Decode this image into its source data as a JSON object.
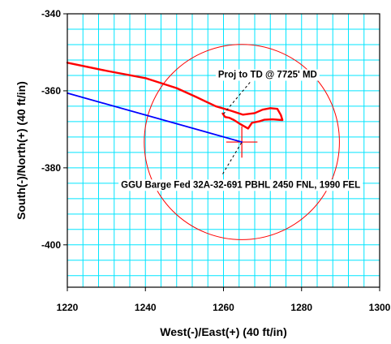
{
  "chart_data": {
    "type": "line",
    "title": "",
    "xlabel": "West(-)/East(+) (40 ft/in)",
    "ylabel": "South(-)/North(+) (40 ft/in)",
    "xlim": [
      1220,
      1300
    ],
    "ylim": [
      -411,
      -340
    ],
    "x_ticks": [
      1220,
      1240,
      1260,
      1280,
      1300
    ],
    "y_ticks": [
      -340,
      -360,
      -380,
      -400
    ],
    "x_minor_step": 4,
    "y_minor_step": 4,
    "grid": true,
    "grid_color": "#00e5ff",
    "series": [
      {
        "color": "#ff0000",
        "style": "survey",
        "points": [
          [
            1220,
            -352.7
          ],
          [
            1230,
            -354.8
          ],
          [
            1240,
            -356.7
          ],
          [
            1248,
            -359.3
          ],
          [
            1253,
            -361.6
          ],
          [
            1258,
            -364.0
          ],
          [
            1262,
            -365.2
          ],
          [
            1265,
            -366.2
          ],
          [
            1268,
            -365.8
          ],
          [
            1270,
            -364.9
          ],
          [
            1272,
            -364.5
          ],
          [
            1273.8,
            -364.7
          ],
          [
            1274.7,
            -366.3
          ],
          [
            1275.1,
            -367.6
          ],
          [
            1272.5,
            -367.4
          ],
          [
            1270.5,
            -367.5
          ],
          [
            1269.3,
            -367.9
          ],
          [
            1267.3,
            -368.3
          ],
          [
            1266.3,
            -369.8
          ],
          [
            1264.4,
            -368.7
          ],
          [
            1262.7,
            -367.6
          ],
          [
            1261.5,
            -367.0
          ],
          [
            1260.4,
            -366.8
          ],
          [
            1259.8,
            -365.9
          ]
        ]
      },
      {
        "color": "#0000ff",
        "style": "plan",
        "points": [
          [
            1220,
            -360.6
          ],
          [
            1264.7,
            -373.3
          ]
        ]
      }
    ],
    "target": {
      "color": "#ff0000",
      "center": [
        1264.7,
        -373.3
      ],
      "radius": 25,
      "cross_half_len": 4
    },
    "annotations": [
      {
        "text": "Proj to TD @ 7725' MD",
        "at": [
          1271.3,
          -355.7
        ],
        "leader": [
          [
            1266.8,
            -357.8
          ],
          [
            1259.6,
            -366.5
          ]
        ]
      },
      {
        "text": "GGU Barge Fed 32A-32-691 PBHL 2450 FNL, 1990 FEL",
        "at": [
          1264.4,
          -384.3
        ],
        "leader": [
          [
            1259.8,
            -381.6
          ],
          [
            1264.7,
            -373.3
          ]
        ]
      }
    ]
  }
}
